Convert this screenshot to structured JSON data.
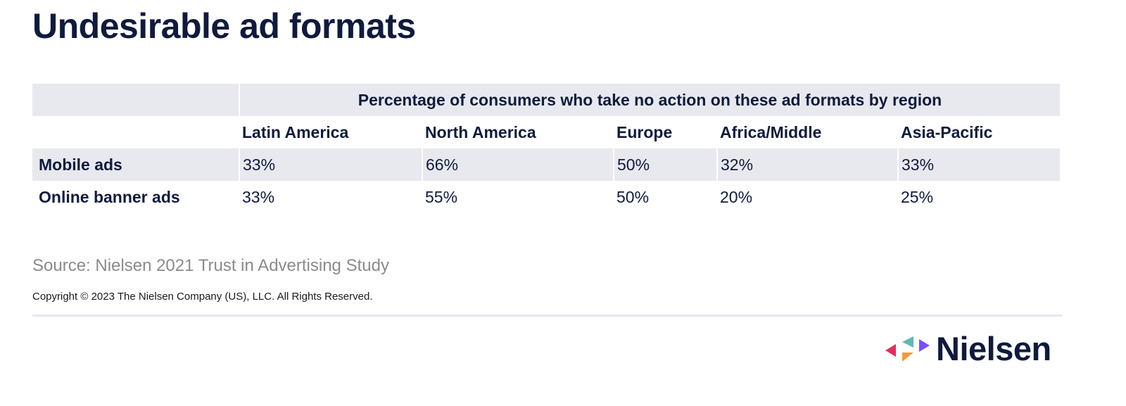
{
  "title": "Undesirable ad formats",
  "table": {
    "super_header": "Percentage of consumers who take no action on these ad formats by region",
    "columns": [
      "Latin America",
      "North America",
      "Europe",
      "Africa/Middle",
      "Asia-Pacific"
    ],
    "rows": [
      {
        "label": "Mobile ads",
        "values": [
          "33%",
          "66%",
          "50%",
          "32%",
          "33%"
        ]
      },
      {
        "label": "Online banner ads",
        "values": [
          "33%",
          "55%",
          "50%",
          "20%",
          "25%"
        ]
      }
    ]
  },
  "source": "Source: Nielsen 2021 Trust in Advertising Study",
  "copyright": "Copyright © 2023 The Nielsen Company (US), LLC. All Rights Reserved.",
  "logo": {
    "wordmark": "Nielsen",
    "colors": {
      "red": "#e0305a",
      "teal": "#5fb8b4",
      "purple": "#7a4dff",
      "orange": "#f59a3c"
    }
  },
  "colors": {
    "text": "#0f1b3d",
    "shade": "#e8e9ef",
    "source_text": "#8a8a8f"
  }
}
